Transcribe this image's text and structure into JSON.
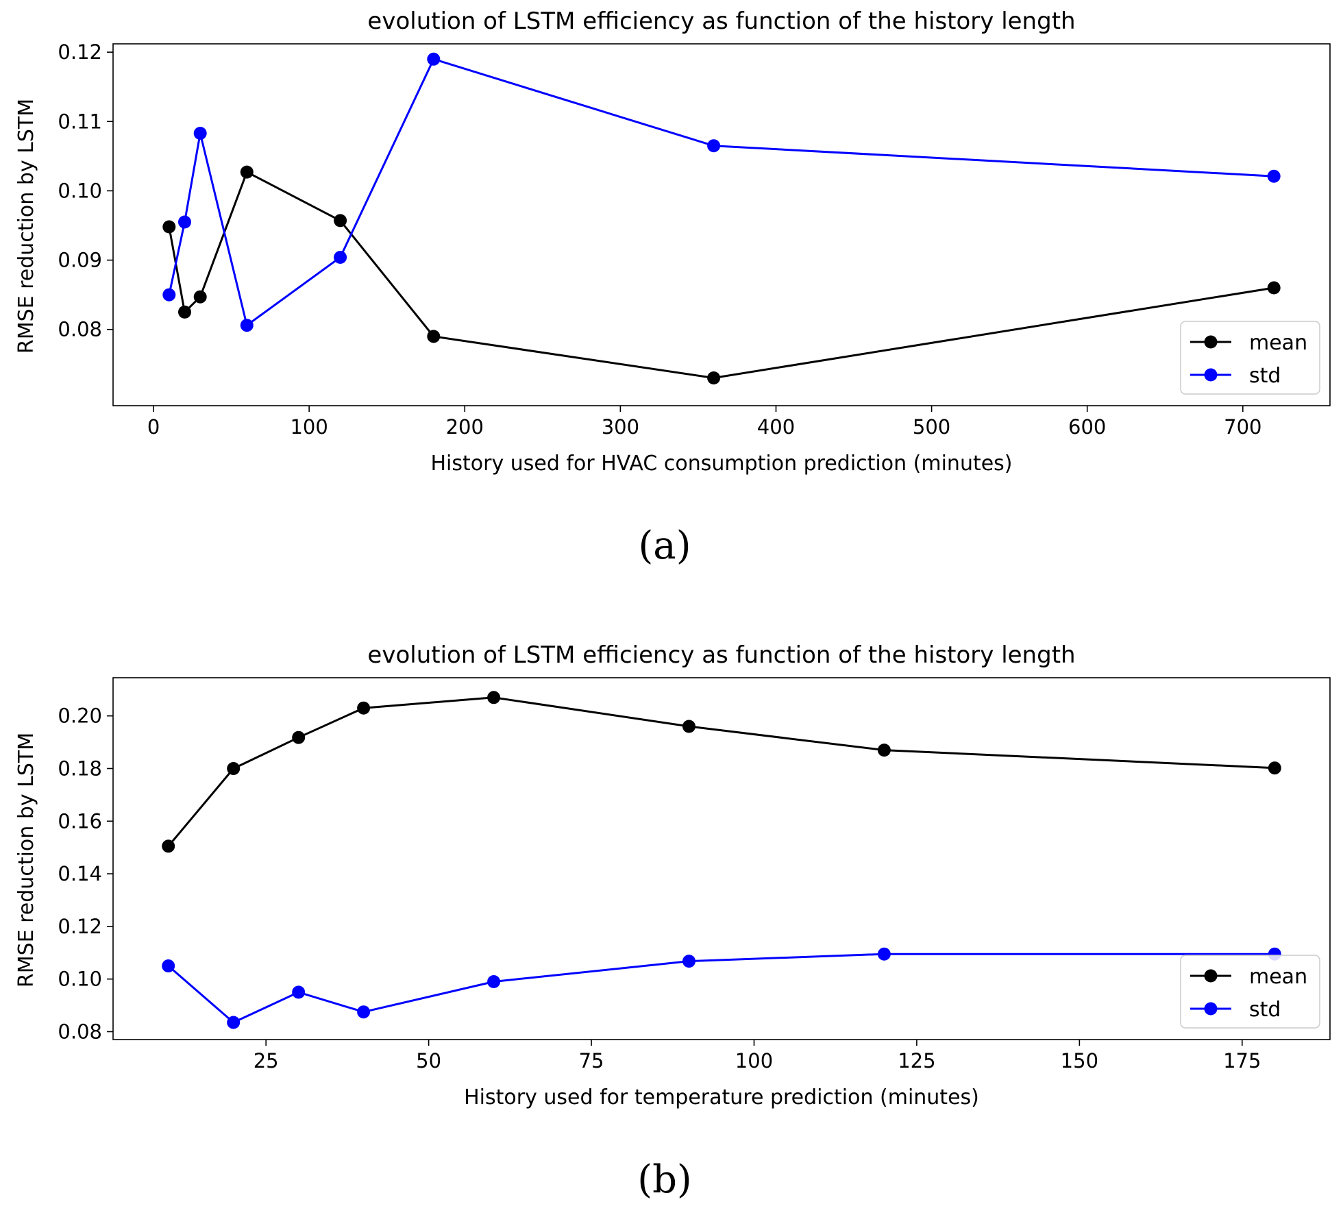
{
  "chart_data": [
    {
      "type": "line",
      "title": "evolution of LSTM efficiency as function of the history length",
      "xlabel": "History used for HVAC consumption prediction (minutes)",
      "ylabel": "RMSE reduction by LSTM",
      "caption": "(a)",
      "xlim": [
        -26,
        756
      ],
      "ylim": [
        0.069,
        0.1212
      ],
      "xticks": [
        0,
        100,
        200,
        300,
        400,
        500,
        600,
        700
      ],
      "xtick_labels": [
        "0",
        "100",
        "200",
        "300",
        "400",
        "500",
        "600",
        "700"
      ],
      "yticks": [
        0.08,
        0.09,
        0.1,
        0.11,
        0.12
      ],
      "ytick_labels": [
        "0.08",
        "0.09",
        "0.10",
        "0.11",
        "0.12"
      ],
      "grid": false,
      "legend_position": "bottom-right",
      "x": [
        10,
        20,
        30,
        60,
        120,
        180,
        360,
        720
      ],
      "series": [
        {
          "name": "mean",
          "color": "#000000",
          "values": [
            0.0948,
            0.0825,
            0.0847,
            0.1027,
            0.0957,
            0.079,
            0.073,
            0.086
          ]
        },
        {
          "name": "std",
          "color": "#0000ff",
          "values": [
            0.085,
            0.0955,
            0.1083,
            0.0806,
            0.0904,
            0.119,
            0.1065,
            0.1021
          ]
        }
      ]
    },
    {
      "type": "line",
      "title": "evolution of LSTM efficiency as function of the history length",
      "xlabel": "History used for temperature prediction (minutes)",
      "ylabel": "RMSE reduction by LSTM",
      "caption": "(b)",
      "xlim": [
        1.5,
        188.5
      ],
      "ylim": [
        0.077,
        0.2145
      ],
      "xticks": [
        25,
        50,
        75,
        100,
        125,
        150,
        175
      ],
      "xtick_labels": [
        "25",
        "50",
        "75",
        "100",
        "125",
        "150",
        "175"
      ],
      "yticks": [
        0.08,
        0.1,
        0.12,
        0.14,
        0.16,
        0.18,
        0.2
      ],
      "ytick_labels": [
        "0.08",
        "0.10",
        "0.12",
        "0.14",
        "0.16",
        "0.18",
        "0.20"
      ],
      "grid": false,
      "legend_position": "bottom-right",
      "x": [
        10,
        20,
        30,
        40,
        60,
        90,
        120,
        180
      ],
      "series": [
        {
          "name": "mean",
          "color": "#000000",
          "values": [
            0.1505,
            0.18,
            0.1918,
            0.203,
            0.207,
            0.196,
            0.187,
            0.1802
          ]
        },
        {
          "name": "std",
          "color": "#0000ff",
          "values": [
            0.105,
            0.0835,
            0.095,
            0.0875,
            0.099,
            0.1068,
            0.1095,
            0.1095
          ]
        }
      ]
    }
  ]
}
